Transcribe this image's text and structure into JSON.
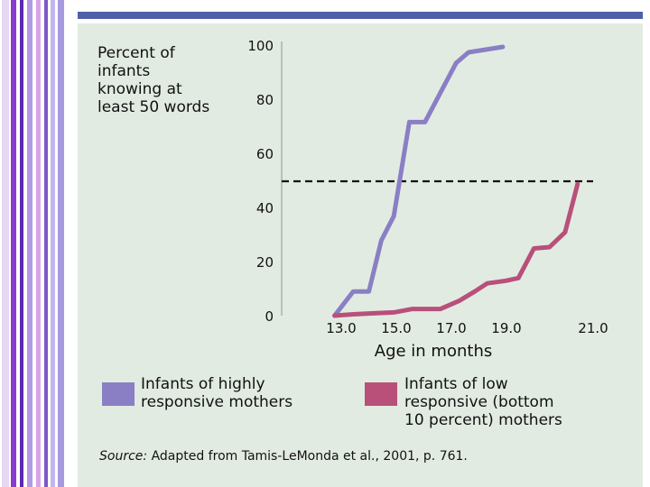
{
  "slide": {
    "stripe_colors": [
      "#e6d7f2",
      "#8a3bd0",
      "#5b2ab0",
      "#b19ae3",
      "#d9a2ea",
      "#7e56c9",
      "#c4b6ee",
      "#a69ae0"
    ],
    "top_bar_color": "#4f5fa8",
    "panel_color": "#e2ebe2"
  },
  "chart_data": {
    "type": "line",
    "ylabel_lines": [
      "Percent of",
      "infants",
      "knowing at",
      "least 50 words"
    ],
    "xlabel": "Age in months",
    "y_ticks": [
      "100",
      "80",
      "60",
      "40",
      "20",
      "0"
    ],
    "x_ticks": [
      "13.0",
      "15.0",
      "17.0",
      "19.0",
      "21.0"
    ],
    "xlim": [
      11.3,
      21.3
    ],
    "ylim": [
      0,
      100
    ],
    "threshold": 50,
    "series": [
      {
        "name": "Infants of highly responsive mothers",
        "color": "#8a7fc4",
        "points": [
          [
            13.0,
            0
          ],
          [
            13.6,
            9
          ],
          [
            14.1,
            9
          ],
          [
            14.5,
            28
          ],
          [
            14.9,
            37
          ],
          [
            15.4,
            72
          ],
          [
            15.9,
            72
          ],
          [
            16.4,
            83
          ],
          [
            16.9,
            94
          ],
          [
            17.3,
            98
          ],
          [
            18.4,
            100
          ]
        ]
      },
      {
        "name": "Infants of low responsive (bottom 10 percent) mothers",
        "color": "#b8507a",
        "points": [
          [
            13.0,
            0
          ],
          [
            13.6,
            0.5
          ],
          [
            14.1,
            0.8
          ],
          [
            14.9,
            1.2
          ],
          [
            15.5,
            2.5
          ],
          [
            16.4,
            2.5
          ],
          [
            17.0,
            5.5
          ],
          [
            17.5,
            9
          ],
          [
            17.9,
            12
          ],
          [
            18.5,
            13
          ],
          [
            18.9,
            14
          ],
          [
            19.4,
            25
          ],
          [
            19.9,
            25.5
          ],
          [
            20.4,
            31
          ],
          [
            20.8,
            49
          ]
        ]
      }
    ],
    "legend": [
      {
        "label_lines": [
          "Infants of highly",
          "responsive mothers"
        ],
        "color": "#8a7fc4"
      },
      {
        "label_lines": [
          "Infants of low",
          "responsive (bottom",
          "10 percent) mothers"
        ],
        "color": "#b8507a"
      }
    ],
    "source_label": "Source:",
    "source_text": "Adapted from Tamis-LeMonda et al., 2001, p. 761."
  }
}
